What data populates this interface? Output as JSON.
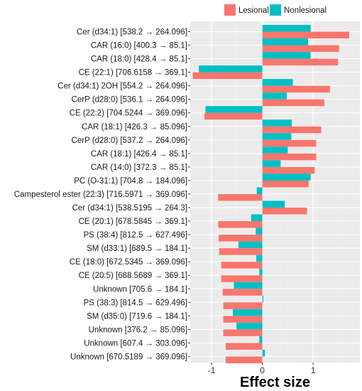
{
  "chart_data": {
    "type": "bar",
    "orientation": "horizontal",
    "title": "",
    "xlabel": "Effect size",
    "ylabel": "",
    "xlim": [
      -1.42,
      1.92
    ],
    "xticks": [
      -1,
      0,
      1
    ],
    "xtick_labels": [
      "-1",
      "0",
      "1"
    ],
    "grid": true,
    "legend_position": "top",
    "categories": [
      "Cer (d34:1) [538.2 → 264.096]",
      "CAR (16:0) [400.3 → 85.1]",
      "CAR (18:0) [428.4 → 85.1]",
      "CE (22:1) [706.6158 → 369.1]",
      "Cer (d34:1) 2OH [554.2 → 264.096]",
      "CerP (d28:0) [536.1 → 264.096]",
      "CE (22:2) [704.5244 → 369.096]",
      "CAR (18:1) [426.3 → 85.096]",
      "CerP (d28:0) [537.2 → 264.096]",
      "CAR (18:1) [426.4 → 85.1]",
      "CAR (14:0) [372.3 → 85.1]",
      "PC (O-31:1) [704.8 → 184.096]",
      "Campesterol ester (22:3) [716.5971 → 369.096]",
      "Cer (d34:1) [538.5195 → 264.3]",
      "CE (20:1) [678.5845 → 369.1]",
      "PS (38:4) [812.5 → 627.496]",
      "SM (d33:1) [689.5 → 184.1]",
      "CE (18:0) [672.5345 → 369.096]",
      "CE (20:5) [688.5689 → 369.1]",
      "Unknown [705.6 → 184.1]",
      "PS (38:3) [814.5 → 629.496]",
      "SM (d35:0) [719.6 → 184.1]",
      "Unknown [376.2 → 85.096]",
      "Unknown [607.4 → 303.096]",
      "Unknown [670.5189 → 369.096]"
    ],
    "series": [
      {
        "name": "Lesional",
        "color": "#f8766d",
        "values": [
          1.71,
          1.51,
          1.49,
          -1.37,
          1.33,
          1.22,
          -1.14,
          1.16,
          1.06,
          1.06,
          1.03,
          0.91,
          -0.87,
          0.88,
          -0.87,
          -0.86,
          -0.85,
          -0.81,
          -0.81,
          -0.78,
          -0.77,
          -0.77,
          -0.77,
          -0.72,
          -0.72
        ]
      },
      {
        "name": "Nonlesional",
        "color": "#00bfc4",
        "values": [
          0.95,
          0.9,
          0.95,
          -1.25,
          0.6,
          0.48,
          -1.12,
          0.58,
          0.57,
          0.5,
          0.36,
          0.95,
          -0.11,
          0.44,
          -0.22,
          -0.13,
          -0.47,
          -0.12,
          -0.06,
          -0.56,
          0.02,
          -0.58,
          -0.51,
          -0.06,
          0.05
        ]
      }
    ]
  }
}
